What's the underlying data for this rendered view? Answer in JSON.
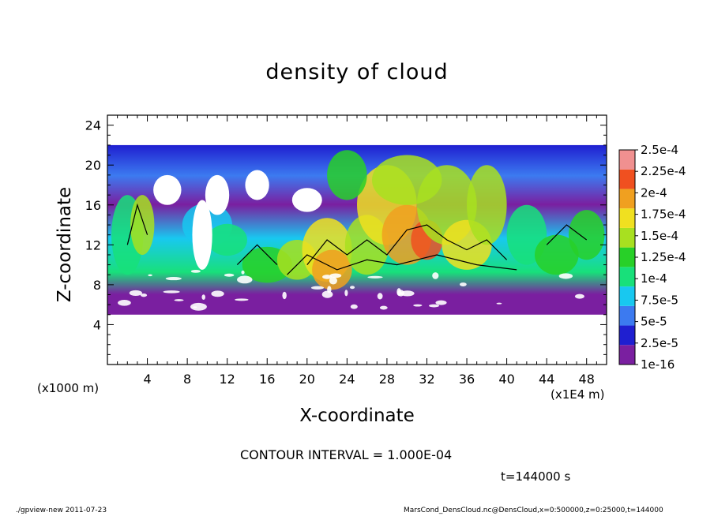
{
  "chart_data": {
    "type": "heatmap",
    "title": "density of cloud",
    "xlabel": "X-coordinate",
    "ylabel": "Z-coordinate",
    "x_unit_note": "(x1000 m)",
    "x_unit_note_right": "(x1E4 m)",
    "xlim": [
      0,
      50
    ],
    "ylim": [
      0,
      25
    ],
    "x_ticks": [
      4,
      8,
      12,
      16,
      20,
      24,
      28,
      32,
      36,
      40,
      44,
      48
    ],
    "y_ticks": [
      4,
      8,
      12,
      16,
      20,
      24
    ],
    "x_tick_labels": [
      "4",
      "8",
      "12",
      "16",
      "20",
      "24",
      "28",
      "32",
      "36",
      "40",
      "44",
      "48"
    ],
    "y_tick_labels": [
      "4",
      "8",
      "12",
      "16",
      "20",
      "24"
    ],
    "colorbar": {
      "labels": [
        "1e-16",
        "2.5e-5",
        "5e-5",
        "7.5e-5",
        "1e-4",
        "1.25e-4",
        "1.5e-4",
        "1.75e-4",
        "2e-4",
        "2.25e-4",
        "2.5e-4"
      ],
      "colors": [
        "#7a1fa0",
        "#1f1fd0",
        "#3c7af0",
        "#18c8f0",
        "#18e07a",
        "#28d028",
        "#a8e020",
        "#f0e020",
        "#f0a020",
        "#f05020",
        "#f09090"
      ]
    },
    "cloud_layer": {
      "bottom": 5,
      "top": 22
    },
    "contour_interval": "CONTOUR INTERVAL = 1.000E-04",
    "time": "t=144000 s"
  },
  "footer": {
    "left": "./gpview-new  2011-07-23",
    "right": "MarsCond_DensCloud.nc@DensCloud,x=0:500000,z=0:25000,t=144000"
  }
}
